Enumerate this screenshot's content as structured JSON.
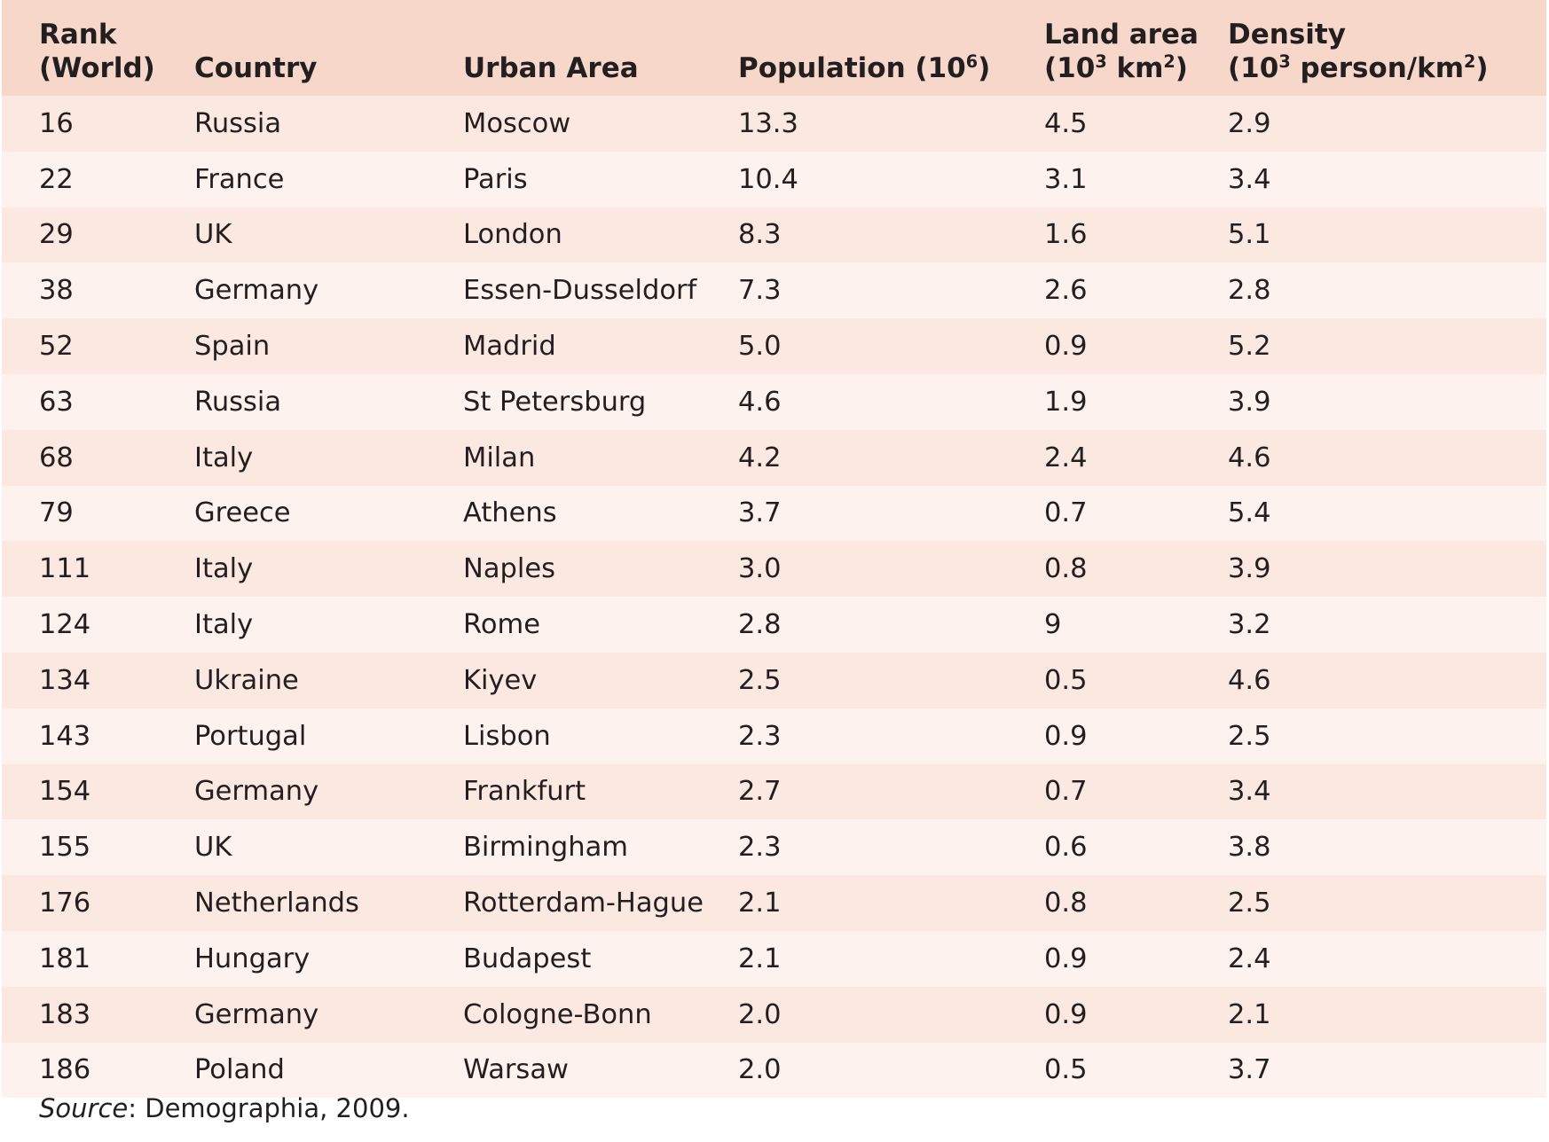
{
  "table": {
    "headers": {
      "rank_line1": "Rank",
      "rank_line2": "(World)",
      "country": "Country",
      "urban_area": "Urban Area",
      "population_prefix": "Population (10",
      "population_sup": "6",
      "population_suffix": ")",
      "land_line1": "Land area",
      "land_line2_prefix": "(10",
      "land_line2_sup1": "3",
      "land_line2_mid": " km",
      "land_line2_sup2": "2",
      "land_line2_suffix": ")",
      "density_line1": "Density",
      "density_line2_prefix": "(10",
      "density_line2_sup1": "3",
      "density_line2_mid": " person/km",
      "density_line2_sup2": "2",
      "density_line2_suffix": ")"
    },
    "rows": [
      {
        "rank": "16",
        "country": "Russia",
        "urban_area": "Moscow",
        "population": "13.3",
        "land_area": "4.5",
        "density": "2.9"
      },
      {
        "rank": "22",
        "country": "France",
        "urban_area": "Paris",
        "population": "10.4",
        "land_area": "3.1",
        "density": "3.4"
      },
      {
        "rank": "29",
        "country": "UK",
        "urban_area": "London",
        "population": "8.3",
        "land_area": "1.6",
        "density": "5.1"
      },
      {
        "rank": "38",
        "country": "Germany",
        "urban_area": "Essen-Dusseldorf",
        "population": "7.3",
        "land_area": "2.6",
        "density": "2.8"
      },
      {
        "rank": "52",
        "country": "Spain",
        "urban_area": "Madrid",
        "population": "5.0",
        "land_area": "0.9",
        "density": "5.2"
      },
      {
        "rank": "63",
        "country": "Russia",
        "urban_area": "St Petersburg",
        "population": "4.6",
        "land_area": "1.9",
        "density": "3.9"
      },
      {
        "rank": "68",
        "country": "Italy",
        "urban_area": "Milan",
        "population": "4.2",
        "land_area": "2.4",
        "density": "4.6"
      },
      {
        "rank": "79",
        "country": "Greece",
        "urban_area": "Athens",
        "population": "3.7",
        "land_area": "0.7",
        "density": "5.4"
      },
      {
        "rank": "111",
        "country": "Italy",
        "urban_area": "Naples",
        "population": "3.0",
        "land_area": "0.8",
        "density": "3.9"
      },
      {
        "rank": "124",
        "country": "Italy",
        "urban_area": "Rome",
        "population": "2.8",
        "land_area": "9",
        "density": "3.2"
      },
      {
        "rank": "134",
        "country": "Ukraine",
        "urban_area": "Kiyev",
        "population": "2.5",
        "land_area": "0.5",
        "density": "4.6"
      },
      {
        "rank": "143",
        "country": "Portugal",
        "urban_area": "Lisbon",
        "population": "2.3",
        "land_area": "0.9",
        "density": "2.5"
      },
      {
        "rank": "154",
        "country": "Germany",
        "urban_area": "Frankfurt",
        "population": "2.7",
        "land_area": "0.7",
        "density": "3.4"
      },
      {
        "rank": "155",
        "country": "UK",
        "urban_area": "Birmingham",
        "population": "2.3",
        "land_area": "0.6",
        "density": "3.8"
      },
      {
        "rank": "176",
        "country": "Netherlands",
        "urban_area": "Rotterdam-Hague",
        "population": "2.1",
        "land_area": "0.8",
        "density": "2.5"
      },
      {
        "rank": "181",
        "country": "Hungary",
        "urban_area": "Budapest",
        "population": "2.1",
        "land_area": "0.9",
        "density": "2.4"
      },
      {
        "rank": "183",
        "country": "Germany",
        "urban_area": "Cologne-Bonn",
        "population": "2.0",
        "land_area": "0.9",
        "density": "2.1"
      },
      {
        "rank": "186",
        "country": "Poland",
        "urban_area": "Warsaw",
        "population": "2.0",
        "land_area": "0.5",
        "density": "3.7"
      }
    ]
  },
  "source": {
    "label": "Source",
    "text": ": Demographia, 2009."
  },
  "colors": {
    "header_bg": "#f8d7cb",
    "row_odd_bg": "#fbe8e1",
    "row_even_bg": "#fdf2ee",
    "text": "#231f20"
  }
}
